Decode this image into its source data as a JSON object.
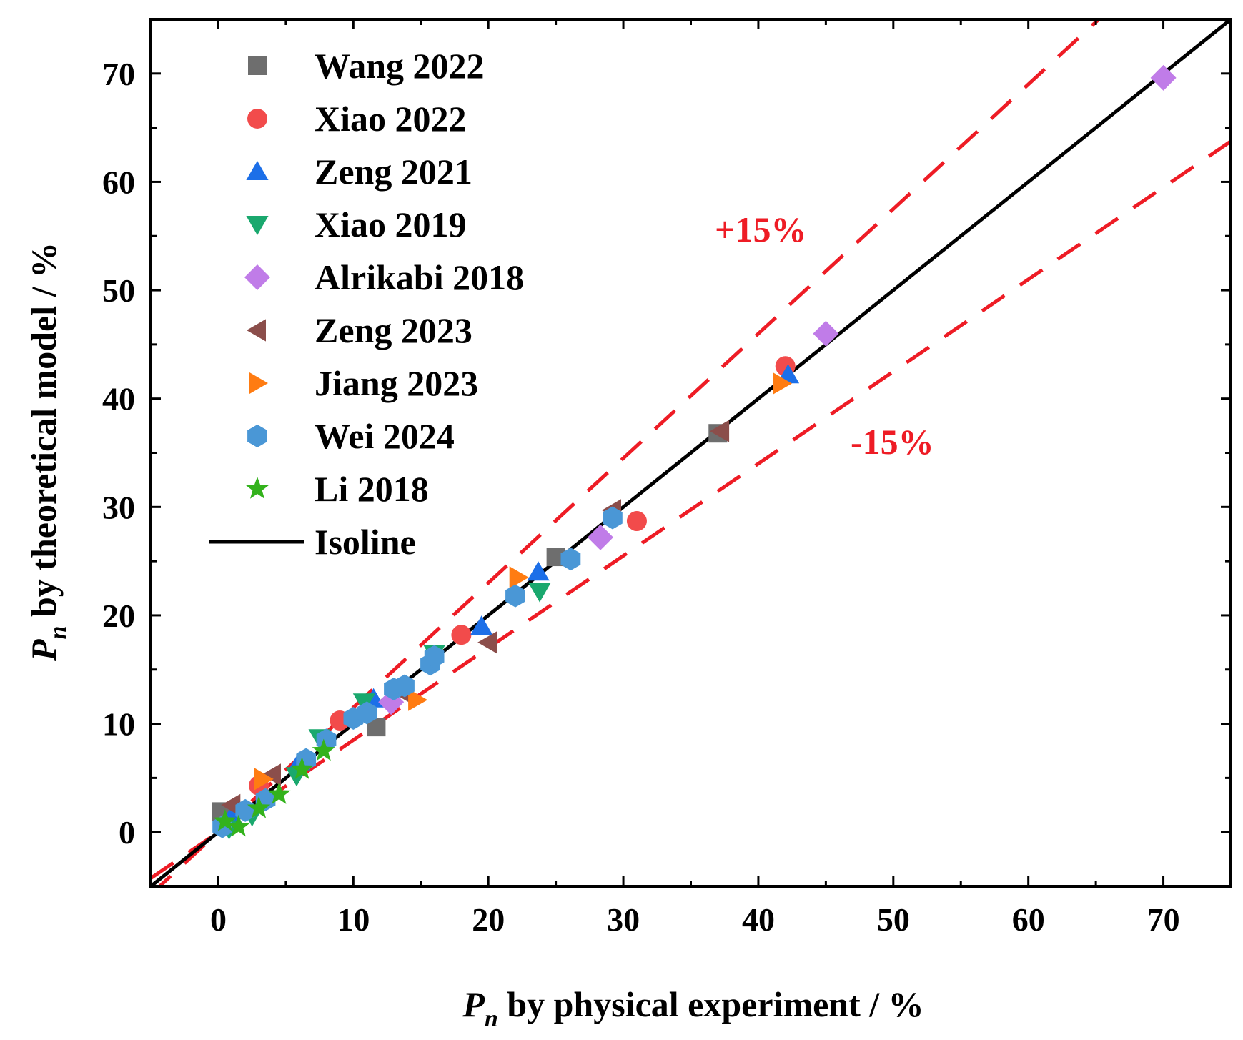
{
  "chart_data": {
    "type": "scatter",
    "xlabel_main": "P",
    "xlabel_sub": "n",
    "xlabel_rest": " by physical experiment / %",
    "ylabel_main": "P",
    "ylabel_sub": "n",
    "ylabel_rest": " by theoretical model / %",
    "xlim": [
      -5,
      75
    ],
    "ylim": [
      -5,
      75
    ],
    "xticks": [
      0,
      10,
      20,
      30,
      40,
      50,
      60,
      70
    ],
    "yticks": [
      0,
      10,
      20,
      30,
      40,
      50,
      60,
      70
    ],
    "band_upper_label": "+15%",
    "band_lower_label": "-15%",
    "band_color": "#ee1c25",
    "isoline_label": "Isoline",
    "series": [
      {
        "name": "Wang 2022",
        "marker": "square",
        "color": "#6e6e6e",
        "points": [
          [
            0.2,
            1.9
          ],
          [
            0.5,
            1.2
          ],
          [
            11.7,
            9.7
          ],
          [
            25.0,
            25.4
          ],
          [
            37.0,
            36.8
          ]
        ]
      },
      {
        "name": "Xiao 2022",
        "marker": "circle",
        "color": "#f24b4b",
        "points": [
          [
            3.0,
            4.3
          ],
          [
            9.0,
            10.3
          ],
          [
            18.0,
            18.2
          ],
          [
            31.0,
            28.7
          ],
          [
            42.0,
            43.0
          ]
        ]
      },
      {
        "name": "Zeng 2021",
        "marker": "triangle-up",
        "color": "#1c6fe8",
        "points": [
          [
            1.0,
            1.5
          ],
          [
            6.0,
            6.5
          ],
          [
            11.5,
            12.3
          ],
          [
            19.5,
            19.0
          ],
          [
            23.7,
            24.0
          ],
          [
            42.2,
            42.2
          ]
        ]
      },
      {
        "name": "Xiao 2019",
        "marker": "triangle-down",
        "color": "#1aa86e",
        "points": [
          [
            0.8,
            0.3
          ],
          [
            2.5,
            1.5
          ],
          [
            5.8,
            5.2
          ],
          [
            7.5,
            8.7
          ],
          [
            10.8,
            12.0
          ],
          [
            16.0,
            16.5
          ],
          [
            23.8,
            22.2
          ]
        ]
      },
      {
        "name": "Alrikabi 2018",
        "marker": "diamond",
        "color": "#c07ce8",
        "points": [
          [
            12.8,
            12.0
          ],
          [
            28.3,
            27.2
          ],
          [
            45.0,
            46.0
          ],
          [
            70.0,
            69.6
          ]
        ]
      },
      {
        "name": "Zeng 2023",
        "marker": "triangle-left",
        "color": "#8b4e4b",
        "points": [
          [
            1.0,
            2.5
          ],
          [
            4.0,
            5.3
          ],
          [
            13.5,
            13.0
          ],
          [
            20.0,
            17.5
          ],
          [
            29.2,
            29.7
          ],
          [
            37.2,
            37.0
          ]
        ]
      },
      {
        "name": "Jiang 2023",
        "marker": "triangle-right",
        "color": "#ff7c12",
        "points": [
          [
            3.3,
            4.9
          ],
          [
            14.7,
            12.2
          ],
          [
            22.2,
            23.5
          ],
          [
            41.7,
            41.4
          ]
        ]
      },
      {
        "name": "Wei 2024",
        "marker": "hexagon",
        "color": "#4a97d6",
        "points": [
          [
            0.3,
            0.5
          ],
          [
            2.0,
            2.0
          ],
          [
            3.5,
            3.0
          ],
          [
            6.5,
            6.7
          ],
          [
            8.0,
            8.5
          ],
          [
            10.0,
            10.5
          ],
          [
            11.0,
            11.0
          ],
          [
            13.0,
            13.2
          ],
          [
            13.8,
            13.5
          ],
          [
            15.7,
            15.5
          ],
          [
            16.0,
            16.2
          ],
          [
            22.0,
            21.8
          ],
          [
            26.1,
            25.2
          ],
          [
            29.2,
            29.0
          ]
        ]
      },
      {
        "name": "Li 2018",
        "marker": "star",
        "color": "#33b21c",
        "points": [
          [
            0.5,
            1.0
          ],
          [
            1.5,
            0.5
          ],
          [
            3.0,
            2.2
          ],
          [
            4.5,
            3.5
          ],
          [
            6.2,
            5.8
          ],
          [
            7.8,
            7.5
          ]
        ]
      }
    ]
  }
}
